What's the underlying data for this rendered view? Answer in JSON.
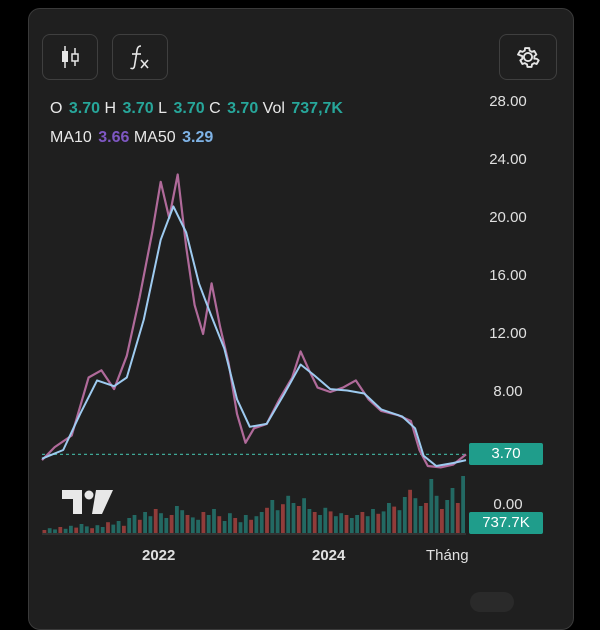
{
  "toolbar": {
    "candles_icon": "candlestick-icon",
    "indicators_icon": "function-fx-icon",
    "settings_icon": "gear-icon"
  },
  "ohlc": {
    "o_label": "O",
    "o": "3.70",
    "h_label": "H",
    "h": "3.70",
    "l_label": "L",
    "l": "3.70",
    "c_label": "C",
    "c": "3.70",
    "vol_label": "Vol",
    "vol": "737,7K"
  },
  "ma": {
    "ma10_label": "MA10",
    "ma10": "3.66",
    "ma50_label": "MA50",
    "ma50": "3.29"
  },
  "price_axis": [
    "28.00",
    "24.00",
    "20.00",
    "16.00",
    "12.00",
    "8.00",
    "0.00"
  ],
  "last_price_badge": "3.70",
  "volume_badge": "737.7K",
  "x_axis": [
    "2022",
    "2024",
    "Tháng"
  ],
  "colors": {
    "up": "#26a69a",
    "down": "#ef5350",
    "ma10": "#7e57c2",
    "ma50": "#90caf9",
    "badge": "#1f9d8b"
  },
  "chart_data": {
    "type": "line",
    "y_price_ticks": [
      8,
      12,
      16,
      20,
      24,
      28
    ],
    "ylim": [
      0,
      28
    ],
    "price_series": [
      {
        "t": 0.0,
        "v": 3.3
      },
      {
        "t": 0.03,
        "v": 4.2
      },
      {
        "t": 0.07,
        "v": 5.0
      },
      {
        "t": 0.11,
        "v": 9.0
      },
      {
        "t": 0.14,
        "v": 9.5
      },
      {
        "t": 0.17,
        "v": 8.2
      },
      {
        "t": 0.2,
        "v": 10.5
      },
      {
        "t": 0.23,
        "v": 14.5
      },
      {
        "t": 0.26,
        "v": 19.0
      },
      {
        "t": 0.28,
        "v": 22.5
      },
      {
        "t": 0.3,
        "v": 20.0
      },
      {
        "t": 0.32,
        "v": 23.0
      },
      {
        "t": 0.34,
        "v": 18.0
      },
      {
        "t": 0.36,
        "v": 14.0
      },
      {
        "t": 0.38,
        "v": 12.0
      },
      {
        "t": 0.4,
        "v": 15.5
      },
      {
        "t": 0.42,
        "v": 12.5
      },
      {
        "t": 0.44,
        "v": 10.0
      },
      {
        "t": 0.46,
        "v": 6.5
      },
      {
        "t": 0.48,
        "v": 4.5
      },
      {
        "t": 0.5,
        "v": 5.5
      },
      {
        "t": 0.53,
        "v": 5.8
      },
      {
        "t": 0.56,
        "v": 7.5
      },
      {
        "t": 0.59,
        "v": 9.0
      },
      {
        "t": 0.61,
        "v": 10.8
      },
      {
        "t": 0.63,
        "v": 9.5
      },
      {
        "t": 0.65,
        "v": 8.3
      },
      {
        "t": 0.68,
        "v": 8.0
      },
      {
        "t": 0.71,
        "v": 8.3
      },
      {
        "t": 0.74,
        "v": 8.8
      },
      {
        "t": 0.77,
        "v": 7.5
      },
      {
        "t": 0.8,
        "v": 6.7
      },
      {
        "t": 0.84,
        "v": 6.4
      },
      {
        "t": 0.87,
        "v": 6.0
      },
      {
        "t": 0.89,
        "v": 4.0
      },
      {
        "t": 0.91,
        "v": 2.9
      },
      {
        "t": 0.94,
        "v": 2.8
      },
      {
        "t": 0.97,
        "v": 3.0
      },
      {
        "t": 1.0,
        "v": 3.7
      }
    ],
    "ma50_series": [
      {
        "t": 0.0,
        "v": 3.4
      },
      {
        "t": 0.05,
        "v": 4.0
      },
      {
        "t": 0.09,
        "v": 6.5
      },
      {
        "t": 0.13,
        "v": 8.8
      },
      {
        "t": 0.17,
        "v": 8.4
      },
      {
        "t": 0.2,
        "v": 9.0
      },
      {
        "t": 0.24,
        "v": 13.0
      },
      {
        "t": 0.28,
        "v": 18.5
      },
      {
        "t": 0.31,
        "v": 20.8
      },
      {
        "t": 0.34,
        "v": 19.0
      },
      {
        "t": 0.37,
        "v": 15.5
      },
      {
        "t": 0.4,
        "v": 13.2
      },
      {
        "t": 0.43,
        "v": 11.0
      },
      {
        "t": 0.46,
        "v": 7.5
      },
      {
        "t": 0.49,
        "v": 5.6
      },
      {
        "t": 0.53,
        "v": 5.8
      },
      {
        "t": 0.57,
        "v": 7.8
      },
      {
        "t": 0.61,
        "v": 9.9
      },
      {
        "t": 0.64,
        "v": 9.2
      },
      {
        "t": 0.68,
        "v": 8.2
      },
      {
        "t": 0.72,
        "v": 8.1
      },
      {
        "t": 0.76,
        "v": 7.9
      },
      {
        "t": 0.8,
        "v": 6.8
      },
      {
        "t": 0.85,
        "v": 6.3
      },
      {
        "t": 0.88,
        "v": 5.5
      },
      {
        "t": 0.9,
        "v": 3.6
      },
      {
        "t": 0.93,
        "v": 2.9
      },
      {
        "t": 0.97,
        "v": 3.1
      },
      {
        "t": 1.0,
        "v": 3.3
      }
    ],
    "last_price": 3.7,
    "volume_bars": [
      0.05,
      0.08,
      0.06,
      0.1,
      0.07,
      0.12,
      0.09,
      0.15,
      0.11,
      0.08,
      0.13,
      0.1,
      0.18,
      0.14,
      0.2,
      0.12,
      0.25,
      0.3,
      0.22,
      0.35,
      0.28,
      0.4,
      0.33,
      0.25,
      0.3,
      0.45,
      0.38,
      0.3,
      0.26,
      0.22,
      0.35,
      0.3,
      0.4,
      0.28,
      0.2,
      0.33,
      0.25,
      0.18,
      0.3,
      0.22,
      0.28,
      0.35,
      0.42,
      0.55,
      0.38,
      0.48,
      0.62,
      0.5,
      0.45,
      0.58,
      0.4,
      0.35,
      0.3,
      0.42,
      0.36,
      0.28,
      0.33,
      0.3,
      0.25,
      0.3,
      0.35,
      0.28,
      0.4,
      0.32,
      0.36,
      0.5,
      0.44,
      0.38,
      0.6,
      0.72,
      0.58,
      0.45,
      0.5,
      0.9,
      0.62,
      0.4,
      0.55,
      0.75,
      0.5,
      0.95
    ]
  }
}
